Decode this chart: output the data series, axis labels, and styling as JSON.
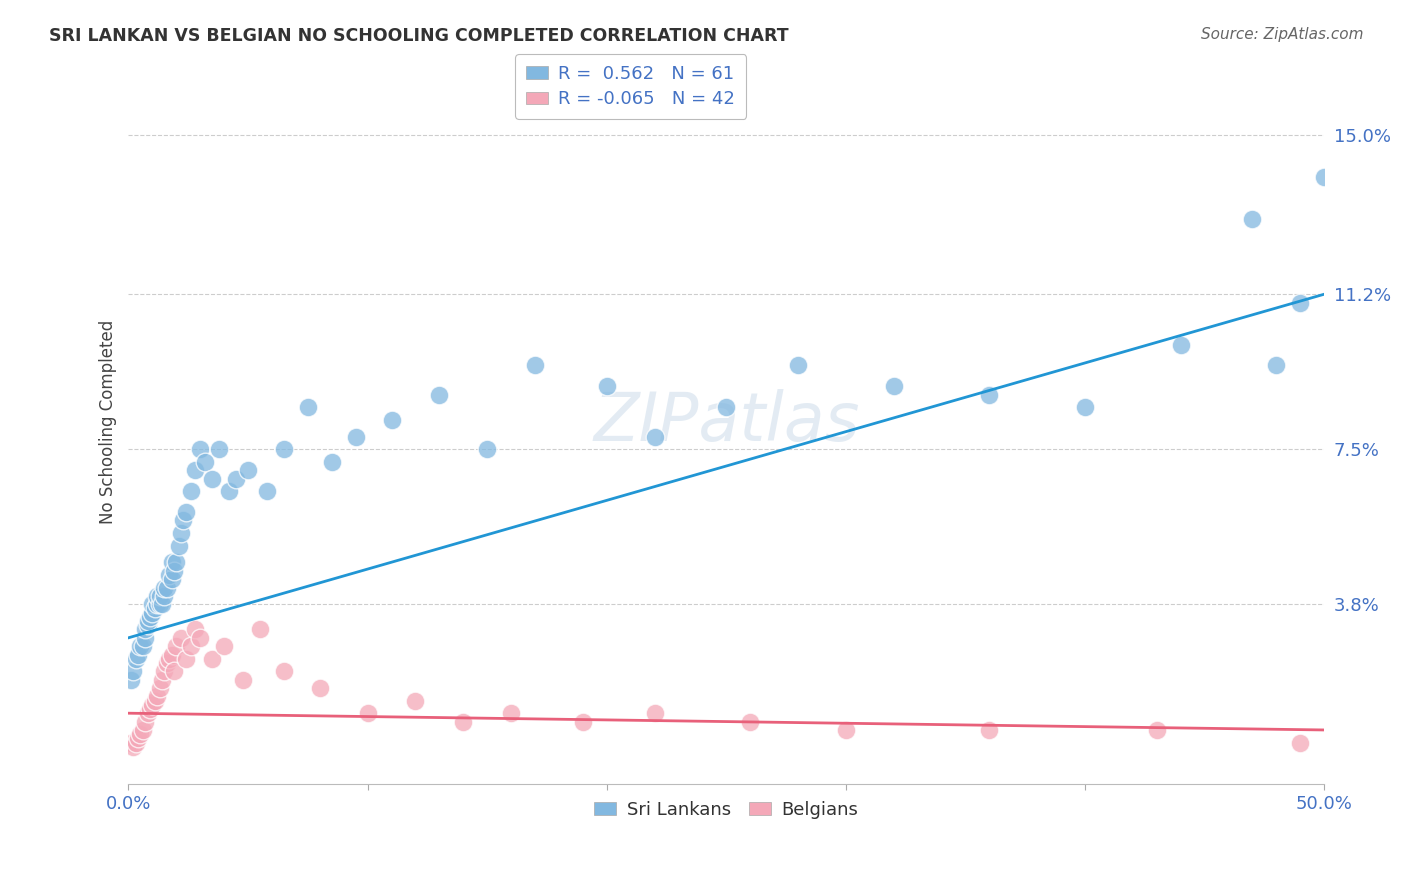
{
  "title": "SRI LANKAN VS BELGIAN NO SCHOOLING COMPLETED CORRELATION CHART",
  "source": "Source: ZipAtlas.com",
  "ylabel": "No Schooling Completed",
  "yticks": [
    "3.8%",
    "7.5%",
    "11.2%",
    "15.0%"
  ],
  "ytick_vals": [
    0.038,
    0.075,
    0.112,
    0.15
  ],
  "xrange": [
    0.0,
    0.5
  ],
  "yrange": [
    -0.005,
    0.168
  ],
  "sri_lankan_color": "#82b8e0",
  "belgian_color": "#f4a8b8",
  "sri_lankan_line_color": "#2196d4",
  "belgian_line_color": "#e8607a",
  "background_color": "#ffffff",
  "grid_color": "#c8c8c8",
  "watermark": "ZIPatlas",
  "sri_lankans_x": [
    0.001,
    0.002,
    0.003,
    0.004,
    0.005,
    0.006,
    0.007,
    0.007,
    0.008,
    0.008,
    0.009,
    0.01,
    0.01,
    0.011,
    0.012,
    0.012,
    0.013,
    0.013,
    0.014,
    0.015,
    0.015,
    0.016,
    0.017,
    0.018,
    0.018,
    0.019,
    0.02,
    0.021,
    0.022,
    0.023,
    0.024,
    0.026,
    0.028,
    0.03,
    0.032,
    0.035,
    0.038,
    0.042,
    0.045,
    0.05,
    0.058,
    0.065,
    0.075,
    0.085,
    0.095,
    0.11,
    0.13,
    0.15,
    0.17,
    0.2,
    0.22,
    0.25,
    0.28,
    0.32,
    0.36,
    0.4,
    0.44,
    0.47,
    0.48,
    0.49,
    0.5
  ],
  "sri_lankans_y": [
    0.02,
    0.022,
    0.025,
    0.026,
    0.028,
    0.028,
    0.03,
    0.032,
    0.033,
    0.034,
    0.035,
    0.036,
    0.038,
    0.037,
    0.038,
    0.04,
    0.038,
    0.04,
    0.038,
    0.04,
    0.042,
    0.042,
    0.045,
    0.044,
    0.048,
    0.046,
    0.048,
    0.052,
    0.055,
    0.058,
    0.06,
    0.065,
    0.07,
    0.075,
    0.072,
    0.068,
    0.075,
    0.065,
    0.068,
    0.07,
    0.065,
    0.075,
    0.085,
    0.072,
    0.078,
    0.082,
    0.088,
    0.075,
    0.095,
    0.09,
    0.078,
    0.085,
    0.095,
    0.09,
    0.088,
    0.085,
    0.1,
    0.13,
    0.095,
    0.11,
    0.14
  ],
  "belgians_x": [
    0.001,
    0.002,
    0.003,
    0.004,
    0.005,
    0.006,
    0.007,
    0.008,
    0.009,
    0.01,
    0.011,
    0.012,
    0.013,
    0.014,
    0.015,
    0.016,
    0.017,
    0.018,
    0.019,
    0.02,
    0.022,
    0.024,
    0.026,
    0.028,
    0.03,
    0.035,
    0.04,
    0.048,
    0.055,
    0.065,
    0.08,
    0.1,
    0.12,
    0.14,
    0.16,
    0.19,
    0.22,
    0.26,
    0.3,
    0.36,
    0.43,
    0.49
  ],
  "belgians_y": [
    0.005,
    0.004,
    0.005,
    0.006,
    0.007,
    0.008,
    0.01,
    0.012,
    0.013,
    0.014,
    0.015,
    0.016,
    0.018,
    0.02,
    0.022,
    0.024,
    0.025,
    0.026,
    0.022,
    0.028,
    0.03,
    0.025,
    0.028,
    0.032,
    0.03,
    0.025,
    0.028,
    0.02,
    0.032,
    0.022,
    0.018,
    0.012,
    0.015,
    0.01,
    0.012,
    0.01,
    0.012,
    0.01,
    0.008,
    0.008,
    0.008,
    0.005
  ],
  "sri_lankan_line_y0": 0.03,
  "sri_lankan_line_y1": 0.112,
  "belgian_line_y0": 0.012,
  "belgian_line_y1": 0.008
}
